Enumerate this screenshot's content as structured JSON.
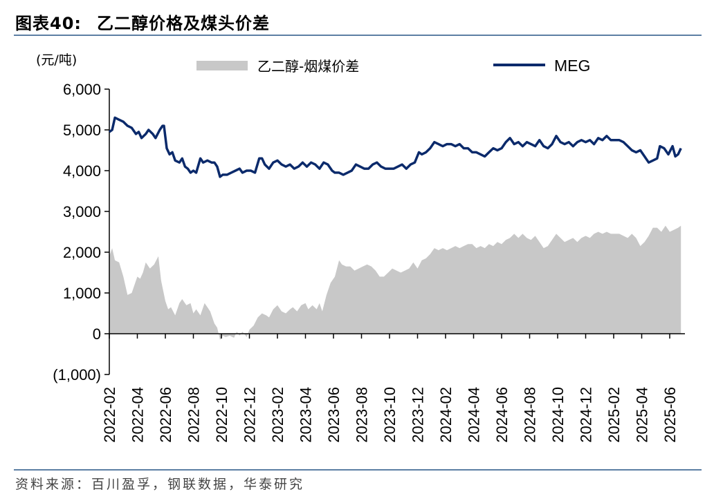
{
  "header": {
    "figure_no": "图表40:",
    "title": "乙二醇价格及煤头价差"
  },
  "source": "资料来源：百川盈孚，钢联数据，华泰研究",
  "chart_data": {
    "type": "line+area",
    "unit_label": "(元/吨)",
    "ylim": [
      -1000,
      6000
    ],
    "yticks": [
      -1000,
      0,
      1000,
      2000,
      3000,
      4000,
      5000,
      6000
    ],
    "ytick_labels": [
      "(1,000)",
      "0",
      "1,000",
      "2,000",
      "3,000",
      "4,000",
      "5,000",
      "6,000"
    ],
    "xtick_labels": [
      "2022-02",
      "2022-04",
      "2022-06",
      "2022-08",
      "2022-10",
      "2022-12",
      "2023-02",
      "2023-04",
      "2023-06",
      "2023-08",
      "2023-10",
      "2023-12",
      "2024-02",
      "2024-04",
      "2024-06",
      "2024-08",
      "2024-10",
      "2024-12",
      "2025-02",
      "2025-04",
      "2025-06"
    ],
    "x_start": "2022-02",
    "legend_placement": "top",
    "colors": {
      "spread": "#c8c8c8",
      "meg": "#0b2a6b",
      "axis": "#000000",
      "rule": "#5b7ea3"
    },
    "series": [
      {
        "name": "乙二醇-烟煤价差",
        "kind": "area",
        "points": [
          [
            0,
            1900
          ],
          [
            0.1,
            2100
          ],
          [
            0.2,
            1800
          ],
          [
            0.35,
            1750
          ],
          [
            0.5,
            1400
          ],
          [
            0.65,
            950
          ],
          [
            0.8,
            1000
          ],
          [
            1.0,
            1400
          ],
          [
            1.1,
            1350
          ],
          [
            1.2,
            1500
          ],
          [
            1.3,
            1750
          ],
          [
            1.45,
            1600
          ],
          [
            1.6,
            1700
          ],
          [
            1.75,
            1900
          ],
          [
            1.85,
            1300
          ],
          [
            2.0,
            800
          ],
          [
            2.1,
            600
          ],
          [
            2.2,
            650
          ],
          [
            2.35,
            450
          ],
          [
            2.5,
            750
          ],
          [
            2.6,
            850
          ],
          [
            2.75,
            700
          ],
          [
            2.9,
            750
          ],
          [
            3.0,
            500
          ],
          [
            3.1,
            600
          ],
          [
            3.25,
            450
          ],
          [
            3.4,
            750
          ],
          [
            3.5,
            650
          ],
          [
            3.6,
            550
          ],
          [
            3.75,
            250
          ],
          [
            3.85,
            150
          ],
          [
            3.95,
            -150
          ],
          [
            4.05,
            -50
          ],
          [
            4.15,
            -80
          ],
          [
            4.3,
            -50
          ],
          [
            4.45,
            -100
          ],
          [
            4.55,
            50
          ],
          [
            4.65,
            -50
          ],
          [
            4.75,
            50
          ],
          [
            4.9,
            -80
          ],
          [
            5.0,
            100
          ],
          [
            5.15,
            200
          ],
          [
            5.3,
            400
          ],
          [
            5.45,
            500
          ],
          [
            5.6,
            450
          ],
          [
            5.7,
            400
          ],
          [
            5.85,
            600
          ],
          [
            6.0,
            700
          ],
          [
            6.15,
            550
          ],
          [
            6.3,
            500
          ],
          [
            6.45,
            600
          ],
          [
            6.55,
            650
          ],
          [
            6.7,
            550
          ],
          [
            6.85,
            700
          ],
          [
            7.0,
            750
          ],
          [
            7.1,
            600
          ],
          [
            7.25,
            700
          ],
          [
            7.4,
            600
          ],
          [
            7.5,
            750
          ],
          [
            7.6,
            550
          ],
          [
            7.75,
            950
          ],
          [
            7.9,
            1250
          ],
          [
            8.05,
            1400
          ],
          [
            8.2,
            1800
          ],
          [
            8.3,
            1700
          ],
          [
            8.45,
            1650
          ],
          [
            8.6,
            1650
          ],
          [
            8.75,
            1550
          ],
          [
            8.9,
            1600
          ],
          [
            9.05,
            1650
          ],
          [
            9.2,
            1700
          ],
          [
            9.35,
            1650
          ],
          [
            9.5,
            1550
          ],
          [
            9.65,
            1400
          ],
          [
            9.8,
            1400
          ],
          [
            9.95,
            1500
          ],
          [
            10.1,
            1600
          ],
          [
            10.25,
            1550
          ],
          [
            10.4,
            1500
          ],
          [
            10.55,
            1550
          ],
          [
            10.7,
            1600
          ],
          [
            10.85,
            1750
          ],
          [
            11.0,
            1600
          ],
          [
            11.15,
            1800
          ],
          [
            11.3,
            1850
          ],
          [
            11.45,
            1950
          ],
          [
            11.6,
            2100
          ],
          [
            11.75,
            2050
          ],
          [
            11.9,
            2100
          ],
          [
            12.05,
            2050
          ],
          [
            12.2,
            2100
          ],
          [
            12.35,
            2150
          ],
          [
            12.5,
            2100
          ],
          [
            12.65,
            2150
          ],
          [
            12.8,
            2200
          ],
          [
            12.95,
            2200
          ],
          [
            13.1,
            2100
          ],
          [
            13.25,
            2150
          ],
          [
            13.4,
            2100
          ],
          [
            13.55,
            2200
          ],
          [
            13.7,
            2150
          ],
          [
            13.85,
            2250
          ],
          [
            14.0,
            2200
          ],
          [
            14.15,
            2300
          ],
          [
            14.3,
            2350
          ],
          [
            14.45,
            2450
          ],
          [
            14.6,
            2350
          ],
          [
            14.75,
            2450
          ],
          [
            14.9,
            2350
          ],
          [
            15.05,
            2300
          ],
          [
            15.2,
            2400
          ],
          [
            15.35,
            2250
          ],
          [
            15.5,
            2100
          ],
          [
            15.65,
            2150
          ],
          [
            15.8,
            2300
          ],
          [
            15.95,
            2450
          ],
          [
            16.1,
            2350
          ],
          [
            16.25,
            2250
          ],
          [
            16.4,
            2300
          ],
          [
            16.55,
            2350
          ],
          [
            16.7,
            2250
          ],
          [
            16.85,
            2350
          ],
          [
            17.0,
            2400
          ],
          [
            17.15,
            2350
          ],
          [
            17.3,
            2450
          ],
          [
            17.45,
            2500
          ],
          [
            17.6,
            2450
          ],
          [
            17.75,
            2500
          ],
          [
            17.9,
            2450
          ],
          [
            18.05,
            2450
          ],
          [
            18.2,
            2450
          ],
          [
            18.35,
            2400
          ],
          [
            18.5,
            2350
          ],
          [
            18.65,
            2450
          ],
          [
            18.8,
            2350
          ],
          [
            18.95,
            2150
          ],
          [
            19.1,
            2250
          ],
          [
            19.25,
            2400
          ],
          [
            19.4,
            2600
          ],
          [
            19.55,
            2600
          ],
          [
            19.7,
            2500
          ],
          [
            19.85,
            2650
          ],
          [
            20.0,
            2500
          ],
          [
            20.15,
            2550
          ],
          [
            20.3,
            2600
          ],
          [
            20.4,
            2650
          ]
        ]
      },
      {
        "name": "MEG",
        "kind": "line",
        "points": [
          [
            0,
            4950
          ],
          [
            0.1,
            5000
          ],
          [
            0.2,
            5300
          ],
          [
            0.35,
            5250
          ],
          [
            0.5,
            5200
          ],
          [
            0.65,
            5100
          ],
          [
            0.8,
            5050
          ],
          [
            0.95,
            4900
          ],
          [
            1.05,
            4950
          ],
          [
            1.15,
            4800
          ],
          [
            1.3,
            4900
          ],
          [
            1.4,
            5000
          ],
          [
            1.55,
            4900
          ],
          [
            1.65,
            4800
          ],
          [
            1.8,
            5000
          ],
          [
            1.9,
            5100
          ],
          [
            1.95,
            5100
          ],
          [
            2.05,
            4550
          ],
          [
            2.15,
            4400
          ],
          [
            2.25,
            4450
          ],
          [
            2.35,
            4250
          ],
          [
            2.5,
            4200
          ],
          [
            2.6,
            4300
          ],
          [
            2.7,
            4100
          ],
          [
            2.8,
            4050
          ],
          [
            2.9,
            3950
          ],
          [
            3.0,
            4000
          ],
          [
            3.1,
            3950
          ],
          [
            3.25,
            4300
          ],
          [
            3.35,
            4200
          ],
          [
            3.5,
            4250
          ],
          [
            3.65,
            4200
          ],
          [
            3.75,
            4200
          ],
          [
            3.85,
            4100
          ],
          [
            3.95,
            3850
          ],
          [
            4.05,
            3900
          ],
          [
            4.2,
            3900
          ],
          [
            4.35,
            3950
          ],
          [
            4.5,
            4000
          ],
          [
            4.65,
            4050
          ],
          [
            4.75,
            3950
          ],
          [
            4.9,
            4000
          ],
          [
            5.05,
            4000
          ],
          [
            5.2,
            3950
          ],
          [
            5.35,
            4300
          ],
          [
            5.45,
            4300
          ],
          [
            5.55,
            4150
          ],
          [
            5.7,
            4050
          ],
          [
            5.85,
            4200
          ],
          [
            6.0,
            4250
          ],
          [
            6.15,
            4150
          ],
          [
            6.3,
            4100
          ],
          [
            6.45,
            4150
          ],
          [
            6.6,
            4050
          ],
          [
            6.75,
            4100
          ],
          [
            6.9,
            4200
          ],
          [
            7.05,
            4100
          ],
          [
            7.2,
            4200
          ],
          [
            7.35,
            4150
          ],
          [
            7.5,
            4050
          ],
          [
            7.65,
            4200
          ],
          [
            7.8,
            4150
          ],
          [
            7.95,
            4000
          ],
          [
            8.05,
            3950
          ],
          [
            8.2,
            3950
          ],
          [
            8.35,
            3900
          ],
          [
            8.5,
            3950
          ],
          [
            8.65,
            4000
          ],
          [
            8.8,
            4150
          ],
          [
            8.95,
            4100
          ],
          [
            9.1,
            4050
          ],
          [
            9.25,
            4050
          ],
          [
            9.4,
            4150
          ],
          [
            9.55,
            4200
          ],
          [
            9.7,
            4100
          ],
          [
            9.85,
            4050
          ],
          [
            10.0,
            4050
          ],
          [
            10.15,
            4050
          ],
          [
            10.3,
            4100
          ],
          [
            10.45,
            4150
          ],
          [
            10.6,
            4050
          ],
          [
            10.75,
            4150
          ],
          [
            10.9,
            4200
          ],
          [
            11.05,
            4450
          ],
          [
            11.15,
            4400
          ],
          [
            11.3,
            4450
          ],
          [
            11.45,
            4550
          ],
          [
            11.6,
            4700
          ],
          [
            11.75,
            4650
          ],
          [
            11.9,
            4600
          ],
          [
            12.05,
            4650
          ],
          [
            12.2,
            4650
          ],
          [
            12.35,
            4600
          ],
          [
            12.5,
            4650
          ],
          [
            12.65,
            4550
          ],
          [
            12.8,
            4550
          ],
          [
            12.95,
            4450
          ],
          [
            13.1,
            4450
          ],
          [
            13.25,
            4400
          ],
          [
            13.4,
            4350
          ],
          [
            13.55,
            4450
          ],
          [
            13.7,
            4550
          ],
          [
            13.85,
            4500
          ],
          [
            14.0,
            4550
          ],
          [
            14.15,
            4700
          ],
          [
            14.3,
            4800
          ],
          [
            14.45,
            4650
          ],
          [
            14.6,
            4700
          ],
          [
            14.75,
            4600
          ],
          [
            14.9,
            4700
          ],
          [
            15.05,
            4650
          ],
          [
            15.2,
            4600
          ],
          [
            15.35,
            4750
          ],
          [
            15.5,
            4600
          ],
          [
            15.65,
            4550
          ],
          [
            15.8,
            4650
          ],
          [
            15.95,
            4850
          ],
          [
            16.1,
            4700
          ],
          [
            16.25,
            4650
          ],
          [
            16.4,
            4700
          ],
          [
            16.55,
            4600
          ],
          [
            16.7,
            4700
          ],
          [
            16.85,
            4750
          ],
          [
            17.0,
            4700
          ],
          [
            17.15,
            4750
          ],
          [
            17.3,
            4650
          ],
          [
            17.45,
            4800
          ],
          [
            17.6,
            4750
          ],
          [
            17.75,
            4850
          ],
          [
            17.9,
            4750
          ],
          [
            18.05,
            4750
          ],
          [
            18.2,
            4750
          ],
          [
            18.35,
            4700
          ],
          [
            18.5,
            4600
          ],
          [
            18.65,
            4500
          ],
          [
            18.8,
            4450
          ],
          [
            18.95,
            4500
          ],
          [
            19.1,
            4350
          ],
          [
            19.25,
            4200
          ],
          [
            19.4,
            4250
          ],
          [
            19.55,
            4300
          ],
          [
            19.65,
            4600
          ],
          [
            19.8,
            4550
          ],
          [
            19.95,
            4400
          ],
          [
            20.1,
            4600
          ],
          [
            20.2,
            4350
          ],
          [
            20.3,
            4400
          ],
          [
            20.4,
            4550
          ]
        ]
      }
    ]
  }
}
